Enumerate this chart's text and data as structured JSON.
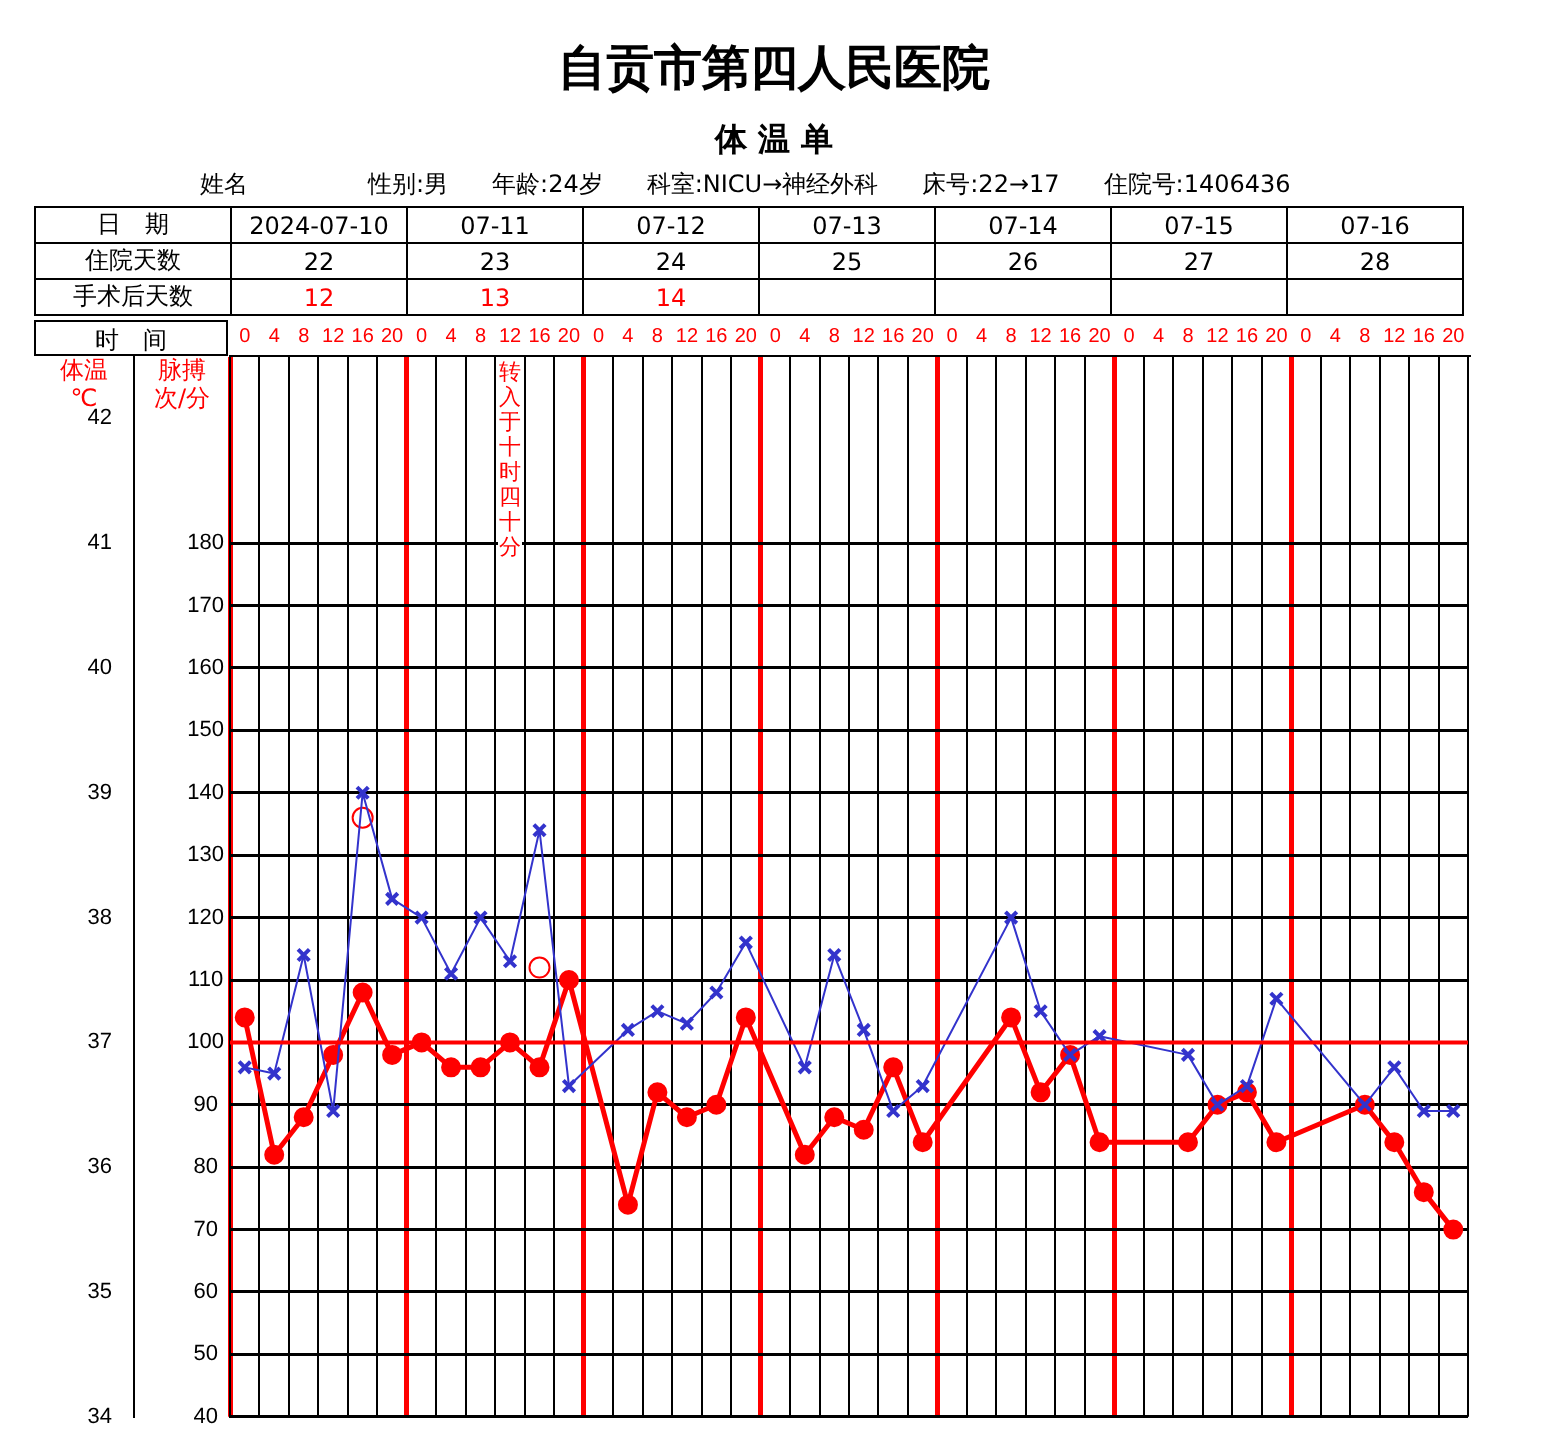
{
  "chart_data": {
    "type": "line",
    "title": "自贡市第四人民医院",
    "subtitle": "体 温 单",
    "ylabel": "体温℃",
    "y2label": "脉搏次/分",
    "categories": [
      "0",
      "4",
      "8",
      "12",
      "16",
      "20",
      "0",
      "4",
      "8",
      "12",
      "16",
      "20",
      "0",
      "4",
      "8",
      "12",
      "16",
      "20",
      "0",
      "4",
      "8",
      "12",
      "16",
      "20",
      "0",
      "4",
      "8",
      "12",
      "16",
      "20",
      "0",
      "4",
      "8",
      "12",
      "16",
      "20",
      "0",
      "4",
      "8",
      "12",
      "16",
      "20"
    ],
    "series": [
      {
        "color": "#ff0000",
        "marker": "circle",
        "values": [
          37.2,
          36.1,
          36.4,
          36.9,
          37.4,
          36.9,
          37.0,
          36.8,
          36.8,
          37.0,
          36.8,
          37.5,
          null,
          35.7,
          36.6,
          36.4,
          36.5,
          37.2,
          null,
          36.1,
          36.4,
          36.3,
          36.8,
          36.2,
          null,
          null,
          37.2,
          36.6,
          36.9,
          36.2,
          null,
          null,
          36.2,
          36.5,
          36.6,
          36.2,
          null,
          null,
          36.5,
          36.2,
          35.8,
          35.5
        ]
      },
      {
        "color": "#3333cc",
        "marker": "cross",
        "axis": "y2",
        "values": [
          96,
          95,
          114,
          89,
          140,
          123,
          120,
          111,
          120,
          113,
          134,
          93,
          null,
          102,
          105,
          103,
          108,
          116,
          null,
          96,
          114,
          102,
          89,
          93,
          null,
          null,
          120,
          105,
          98,
          101,
          null,
          null,
          98,
          90,
          93,
          107,
          null,
          null,
          90,
          96,
          89,
          89
        ]
      },
      {
        "type": "scatter",
        "color": "#ff0000",
        "marker": "circle",
        "values": [
          null,
          null,
          null,
          null,
          38.8,
          null,
          null,
          null,
          null,
          null,
          37.6,
          null,
          null,
          null,
          null,
          null,
          null,
          null,
          null,
          null,
          null,
          null,
          null,
          null,
          null,
          null,
          null,
          null,
          null,
          null,
          null,
          null,
          null,
          null,
          null,
          null,
          null,
          null,
          null,
          null,
          null,
          null
        ]
      }
    ],
    "ylim": [
      34,
      42.5
    ],
    "yticks": [
      34,
      35,
      36,
      37,
      38,
      39,
      40,
      41,
      42
    ],
    "y2lim": [
      40,
      210
    ],
    "y2ticks": [
      40,
      50,
      60,
      70,
      80,
      90,
      100,
      110,
      120,
      130,
      140,
      150,
      160,
      170,
      180
    ],
    "ref_lines": [
      {
        "axis": "y",
        "value": 37,
        "color": "#ff0000"
      }
    ],
    "grid": true,
    "legend": false,
    "annotations": [
      "姓名",
      "性别:男",
      "年龄:24岁",
      "科室:NICU→神经外科",
      "床号:22→17",
      "住院号:1406436",
      "日　期",
      "2024-07-10",
      "07-11",
      "07-12",
      "07-13",
      "07-14",
      "07-15",
      "07-16",
      "住院天数",
      "22",
      "23",
      "24",
      "25",
      "26",
      "27",
      "28",
      "时　间",
      "转入于十时四十分",
      "手术后天数",
      "12",
      "13",
      "14"
    ]
  }
}
